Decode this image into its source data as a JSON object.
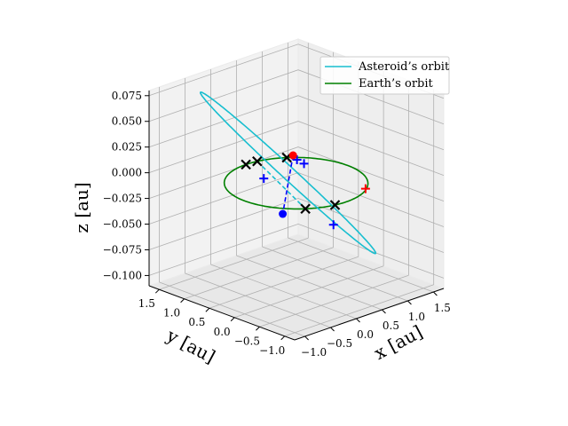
{
  "chart_data": {
    "type": "line3d",
    "xlabel": "$x$ [au]",
    "ylabel": "$y$ [au]",
    "zlabel": "$z$ [au]",
    "xlabel_display": "x [au]",
    "ylabel_display": "y [au]",
    "zlabel_display": "z [au]",
    "xlim": [
      -1.2,
      1.7
    ],
    "ylim": [
      -1.2,
      1.7
    ],
    "zlim": [
      -0.11,
      0.08
    ],
    "xticks": [
      -1.0,
      -0.5,
      0.0,
      0.5,
      1.0,
      1.5
    ],
    "yticks": [
      -1.0,
      -0.5,
      0.0,
      0.5,
      1.0,
      1.5
    ],
    "zticks": [
      -0.1,
      -0.075,
      -0.05,
      -0.025,
      0.0,
      0.025,
      0.05,
      0.075
    ],
    "xtick_labels": [
      "−1.0",
      "−0.5",
      "0.0",
      "0.5",
      "1.0",
      "1.5"
    ],
    "ytick_labels": [
      "−1.0",
      "−0.5",
      "0.0",
      "0.5",
      "1.0",
      "1.5"
    ],
    "ztick_labels": [
      "−0.100",
      "−0.075",
      "−0.050",
      "−0.025",
      "0.000",
      "0.025",
      "0.050",
      "0.075"
    ],
    "view": {
      "elev": 20,
      "azim": -135
    },
    "grid": true,
    "legend_position": "upper-right",
    "series": [
      {
        "name": "Asteroid’s orbit",
        "kind": "ellipse-orbit",
        "color": "#17becf",
        "a": 1.3,
        "e": 0.35,
        "inc_deg": 4.2,
        "node_deg": 62,
        "peri_deg": 178
      },
      {
        "name": "Earth’s orbit",
        "kind": "circle-orbit",
        "color": "#008000",
        "radius": 1.0
      }
    ],
    "markers": {
      "sun_line_color": "#0000ff",
      "red_dot": {
        "position": [
          0.78,
          0.86,
          -0.002
        ],
        "color": "#ff0000"
      },
      "blue_dot": {
        "position": [
          -1.08,
          -0.84,
          0.004
        ],
        "color": "#0000ff"
      },
      "blue_plus": [
        [
          0.7,
          0.7,
          -0.002
        ],
        [
          0.72,
          0.58,
          -0.004
        ],
        [
          -0.98,
          -0.36,
          0.028
        ],
        [
          -0.25,
          -1.0,
          -0.018
        ]
      ],
      "red_plus": [
        [
          0.55,
          -0.82,
          0.0
        ]
      ],
      "black_x": [
        [
          -0.6,
          -0.8,
          0.0
        ],
        [
          -0.2,
          -0.98,
          0.0
        ],
        [
          0.2,
          0.98,
          0.0
        ],
        [
          0.6,
          0.8,
          0.0
        ],
        [
          0.0,
          1.0,
          0.0
        ]
      ]
    }
  }
}
